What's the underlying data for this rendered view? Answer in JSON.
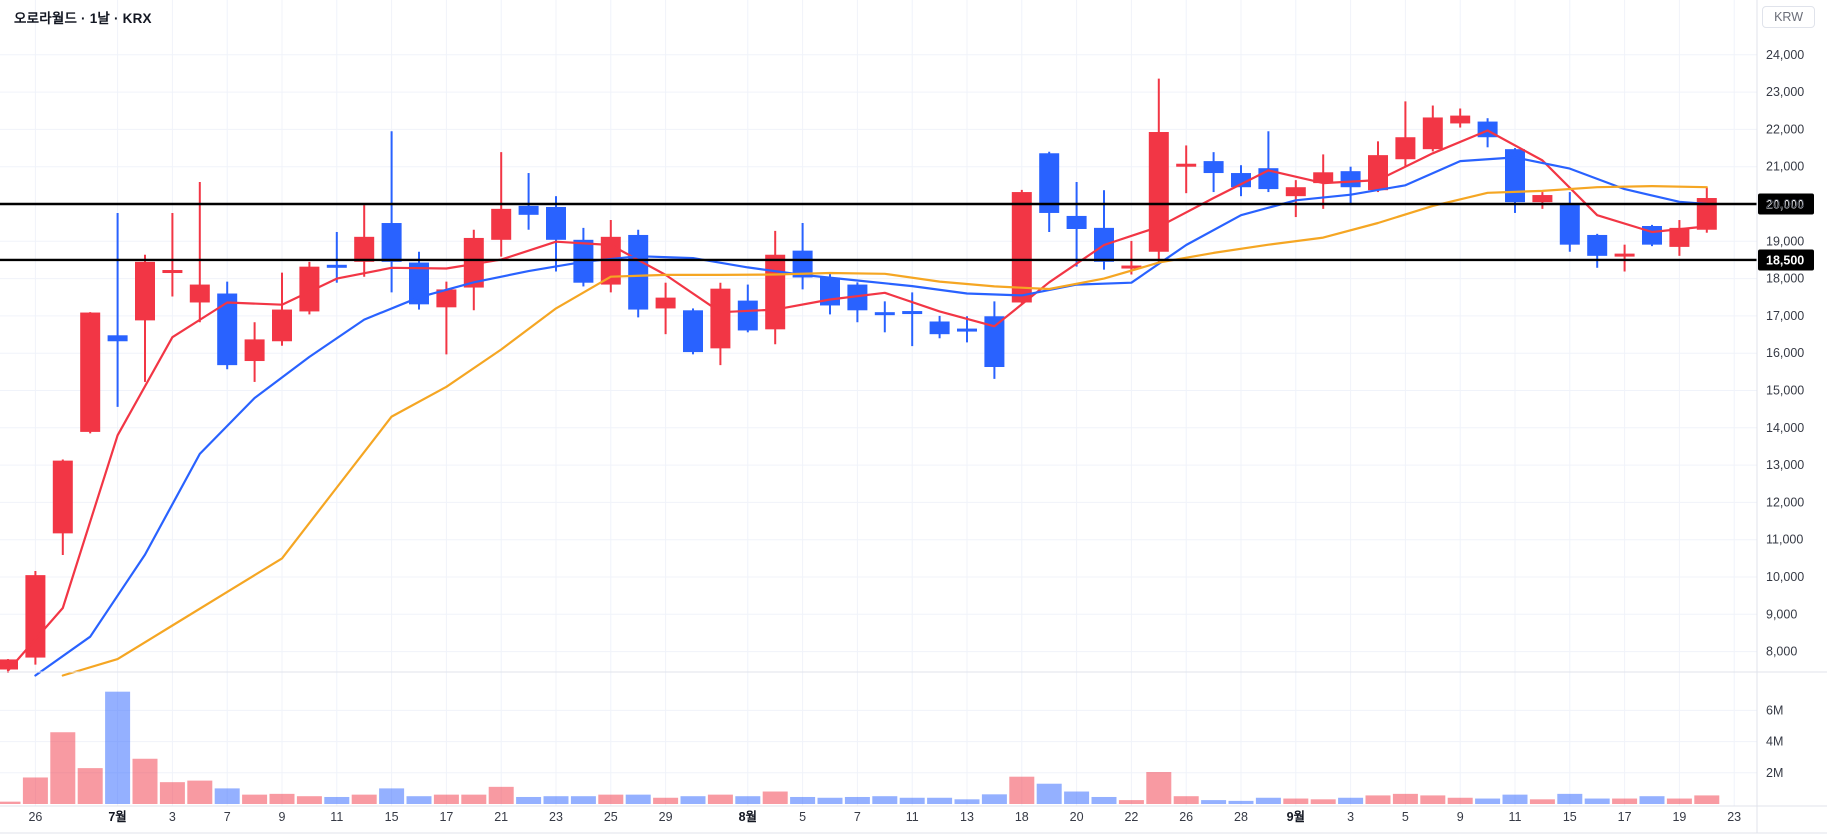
{
  "header": {
    "symbol_title": "오로라월드 · 1날 · KRX"
  },
  "price_axis": {
    "currency_label": "KRW",
    "ticks": [
      {
        "price": 8000,
        "label": "8,000"
      },
      {
        "price": 9000,
        "label": "9,000"
      },
      {
        "price": 10000,
        "label": "10,000"
      },
      {
        "price": 11000,
        "label": "11,000"
      },
      {
        "price": 12000,
        "label": "12,000"
      },
      {
        "price": 13000,
        "label": "13,000"
      },
      {
        "price": 14000,
        "label": "14,000"
      },
      {
        "price": 15000,
        "label": "15,000"
      },
      {
        "price": 16000,
        "label": "16,000"
      },
      {
        "price": 17000,
        "label": "17,000"
      },
      {
        "price": 18000,
        "label": "18,000"
      },
      {
        "price": 19000,
        "label": "19,000"
      },
      {
        "price": 20000,
        "label": "20,000"
      },
      {
        "price": 21000,
        "label": "21,000"
      },
      {
        "price": 22000,
        "label": "22,000"
      },
      {
        "price": 23000,
        "label": "23,000"
      },
      {
        "price": 24000,
        "label": "24,000"
      }
    ]
  },
  "volume_axis": {
    "ticks": [
      {
        "value": 2,
        "label": "2M"
      },
      {
        "value": 4,
        "label": "4M"
      },
      {
        "value": 6,
        "label": "6M"
      }
    ]
  },
  "time_axis": {
    "ticks": [
      {
        "index": 1,
        "label": "26",
        "bold": false
      },
      {
        "index": 4,
        "label": "7월",
        "bold": true
      },
      {
        "index": 6,
        "label": "3",
        "bold": false
      },
      {
        "index": 8,
        "label": "7",
        "bold": false
      },
      {
        "index": 10,
        "label": "9",
        "bold": false
      },
      {
        "index": 12,
        "label": "11",
        "bold": false
      },
      {
        "index": 14,
        "label": "15",
        "bold": false
      },
      {
        "index": 16,
        "label": "17",
        "bold": false
      },
      {
        "index": 18,
        "label": "21",
        "bold": false
      },
      {
        "index": 20,
        "label": "23",
        "bold": false
      },
      {
        "index": 22,
        "label": "25",
        "bold": false
      },
      {
        "index": 24,
        "label": "29",
        "bold": false
      },
      {
        "index": 27,
        "label": "8월",
        "bold": true
      },
      {
        "index": 29,
        "label": "5",
        "bold": false
      },
      {
        "index": 31,
        "label": "7",
        "bold": false
      },
      {
        "index": 33,
        "label": "11",
        "bold": false
      },
      {
        "index": 35,
        "label": "13",
        "bold": false
      },
      {
        "index": 37,
        "label": "18",
        "bold": false
      },
      {
        "index": 39,
        "label": "20",
        "bold": false
      },
      {
        "index": 41,
        "label": "22",
        "bold": false
      },
      {
        "index": 43,
        "label": "26",
        "bold": false
      },
      {
        "index": 45,
        "label": "28",
        "bold": false
      },
      {
        "index": 47,
        "label": "9월",
        "bold": true
      },
      {
        "index": 49,
        "label": "3",
        "bold": false
      },
      {
        "index": 51,
        "label": "5",
        "bold": false
      },
      {
        "index": 53,
        "label": "9",
        "bold": false
      },
      {
        "index": 55,
        "label": "11",
        "bold": false
      },
      {
        "index": 57,
        "label": "15",
        "bold": false
      },
      {
        "index": 59,
        "label": "17",
        "bold": false
      },
      {
        "index": 61,
        "label": "19",
        "bold": false
      },
      {
        "index": 63,
        "label": "23",
        "bold": false
      }
    ]
  },
  "drawings": {
    "horizontal_lines": [
      {
        "price": 20000,
        "label": "20,000"
      },
      {
        "price": 18500,
        "label": "18,500"
      }
    ]
  },
  "colors": {
    "up": "#f23645",
    "down": "#2962ff",
    "vol_up": "rgba(242,54,69,0.5)",
    "vol_down": "rgba(41,98,255,0.5)",
    "grid": "#f0f3fa",
    "separator": "#e0e3eb",
    "axis_text": "#363a45",
    "line_black": "#000000"
  },
  "chart_data": {
    "type": "candlestick+volume",
    "symbol": "오로라월드",
    "interval": "1날",
    "exchange": "KRX",
    "currency": "KRW",
    "ylim_visible": [
      7500,
      25400
    ],
    "price_tick_step": 1000,
    "volume_unit": "M",
    "volume_ylim": [
      0,
      8
    ],
    "grid": true,
    "candle_columns": [
      "date",
      "open",
      "high",
      "low",
      "close",
      "volume_M"
    ],
    "candles": [
      [
        "6/25",
        7520,
        7800,
        7430,
        7790,
        0.15
      ],
      [
        "6/26",
        7840,
        10160,
        7650,
        10050,
        1.7
      ],
      [
        "6/27",
        11170,
        13150,
        10590,
        13120,
        4.6
      ],
      [
        "6/30",
        13890,
        17100,
        13850,
        17090,
        2.3
      ],
      [
        "7/1",
        16480,
        19760,
        14560,
        16320,
        7.2
      ],
      [
        "7/2",
        16880,
        18640,
        15230,
        18450,
        2.9
      ],
      [
        "7/3",
        18150,
        19760,
        17520,
        18230,
        1.4
      ],
      [
        "7/4",
        17360,
        20590,
        16830,
        17840,
        1.5
      ],
      [
        "7/7",
        17600,
        17920,
        15570,
        15680,
        1.0
      ],
      [
        "7/8",
        15790,
        16830,
        15230,
        16370,
        0.6
      ],
      [
        "7/9",
        16320,
        18160,
        16200,
        17170,
        0.65
      ],
      [
        "7/10",
        17120,
        18450,
        17040,
        18320,
        0.5
      ],
      [
        "7/11",
        18370,
        19250,
        17890,
        18330,
        0.45
      ],
      [
        "7/14",
        18450,
        19970,
        18050,
        19120,
        0.6
      ],
      [
        "7/15",
        19490,
        21950,
        17630,
        18450,
        1.0
      ],
      [
        "7/16",
        18430,
        18720,
        17170,
        17310,
        0.5
      ],
      [
        "7/17",
        17230,
        17920,
        15970,
        17710,
        0.6
      ],
      [
        "7/18",
        17760,
        19310,
        17150,
        19090,
        0.6
      ],
      [
        "7/21",
        19040,
        21390,
        18590,
        19870,
        1.1
      ],
      [
        "7/22",
        19950,
        20830,
        19310,
        19710,
        0.45
      ],
      [
        "7/23",
        19920,
        20210,
        18190,
        19040,
        0.5
      ],
      [
        "7/24",
        19040,
        19360,
        17790,
        17890,
        0.5
      ],
      [
        "7/25",
        17840,
        19570,
        17630,
        19120,
        0.6
      ],
      [
        "7/28",
        19170,
        19310,
        16960,
        17170,
        0.6
      ],
      [
        "7/29",
        17200,
        17890,
        16510,
        17490,
        0.4
      ],
      [
        "7/30",
        17150,
        17200,
        15970,
        16030,
        0.5
      ],
      [
        "7/31",
        16130,
        17890,
        15680,
        17730,
        0.6
      ],
      [
        "8/1",
        17410,
        17840,
        16560,
        16610,
        0.5
      ],
      [
        "8/4",
        16640,
        19280,
        16240,
        18640,
        0.8
      ],
      [
        "8/5",
        18750,
        19490,
        17710,
        18030,
        0.45
      ],
      [
        "8/6",
        18030,
        18160,
        17040,
        17280,
        0.4
      ],
      [
        "8/7",
        17840,
        17900,
        16830,
        17150,
        0.45
      ],
      [
        "8/8",
        17100,
        17390,
        16560,
        17090,
        0.5
      ],
      [
        "8/11",
        17130,
        17630,
        16190,
        17110,
        0.4
      ],
      [
        "8/12",
        16850,
        17000,
        16400,
        16510,
        0.4
      ],
      [
        "8/13",
        16660,
        16990,
        16290,
        16630,
        0.3
      ],
      [
        "8/14",
        16990,
        17390,
        15310,
        15630,
        0.62
      ],
      [
        "8/18",
        17360,
        20380,
        17310,
        20320,
        1.75
      ],
      [
        "8/19",
        21360,
        21400,
        19250,
        19760,
        1.3
      ],
      [
        "8/20",
        19680,
        20590,
        18320,
        19330,
        0.8
      ],
      [
        "8/21",
        19360,
        20370,
        18240,
        18450,
        0.45
      ],
      [
        "8/22",
        18290,
        19010,
        18110,
        18350,
        0.25
      ],
      [
        "8/25",
        18720,
        23360,
        18450,
        21930,
        2.05
      ],
      [
        "8/26",
        21000,
        21570,
        20290,
        21080,
        0.5
      ],
      [
        "8/27",
        21150,
        21390,
        20320,
        20830,
        0.25
      ],
      [
        "8/28",
        20830,
        21040,
        20210,
        20450,
        0.2
      ],
      [
        "8/29",
        20960,
        21950,
        20320,
        20400,
        0.4
      ],
      [
        "9/1",
        20210,
        20640,
        19650,
        20450,
        0.35
      ],
      [
        "9/2",
        20560,
        21330,
        19870,
        20850,
        0.3
      ],
      [
        "9/3",
        20880,
        21000,
        19970,
        20450,
        0.4
      ],
      [
        "9/4",
        20370,
        21680,
        20320,
        21310,
        0.55
      ],
      [
        "9/5",
        21200,
        22750,
        20990,
        21790,
        0.65
      ],
      [
        "9/8",
        21470,
        22640,
        21410,
        22320,
        0.55
      ],
      [
        "9/9",
        22160,
        22560,
        22050,
        22370,
        0.4
      ],
      [
        "9/10",
        22210,
        22300,
        21520,
        21790,
        0.35
      ],
      [
        "9/11",
        21470,
        21500,
        19760,
        20050,
        0.6
      ],
      [
        "9/12",
        20050,
        20320,
        19870,
        20240,
        0.3
      ],
      [
        "9/15",
        20000,
        20320,
        18720,
        18910,
        0.65
      ],
      [
        "9/16",
        19170,
        19200,
        18290,
        18610,
        0.35
      ],
      [
        "9/17",
        18620,
        18910,
        18190,
        18670,
        0.35
      ],
      [
        "9/18",
        19410,
        19440,
        18870,
        18910,
        0.5
      ],
      [
        "9/19",
        18850,
        19570,
        18610,
        19360,
        0.35
      ],
      [
        "9/22",
        19310,
        20430,
        19230,
        20160,
        0.55
      ]
    ],
    "moving_averages": [
      {
        "name": "ma-fast-red",
        "color": "#f23645",
        "points": [
          [
            0,
            7490
          ],
          [
            2,
            9170
          ],
          [
            4,
            13800
          ],
          [
            6,
            16430
          ],
          [
            8,
            17360
          ],
          [
            10,
            17300
          ],
          [
            12,
            18000
          ],
          [
            14,
            18290
          ],
          [
            16,
            18270
          ],
          [
            18,
            18510
          ],
          [
            20,
            18990
          ],
          [
            22,
            18900
          ],
          [
            24,
            18100
          ],
          [
            26,
            17100
          ],
          [
            28,
            17170
          ],
          [
            30,
            17440
          ],
          [
            32,
            17620
          ],
          [
            34,
            17120
          ],
          [
            36,
            16720
          ],
          [
            38,
            17900
          ],
          [
            40,
            18900
          ],
          [
            42,
            19390
          ],
          [
            44,
            20160
          ],
          [
            46,
            20900
          ],
          [
            48,
            20560
          ],
          [
            50,
            20640
          ],
          [
            52,
            21360
          ],
          [
            54,
            21970
          ],
          [
            56,
            21170
          ],
          [
            58,
            19700
          ],
          [
            60,
            19250
          ],
          [
            62,
            19400
          ]
        ]
      },
      {
        "name": "ma-mid-blue",
        "color": "#2962ff",
        "points": [
          [
            1,
            7360
          ],
          [
            3,
            8400
          ],
          [
            5,
            10600
          ],
          [
            7,
            13300
          ],
          [
            9,
            14800
          ],
          [
            11,
            15900
          ],
          [
            13,
            16900
          ],
          [
            15,
            17500
          ],
          [
            17,
            17900
          ],
          [
            19,
            18200
          ],
          [
            21,
            18450
          ],
          [
            23,
            18600
          ],
          [
            25,
            18550
          ],
          [
            27,
            18300
          ],
          [
            29,
            18100
          ],
          [
            31,
            17950
          ],
          [
            33,
            17800
          ],
          [
            35,
            17600
          ],
          [
            37,
            17550
          ],
          [
            39,
            17840
          ],
          [
            41,
            17890
          ],
          [
            43,
            18900
          ],
          [
            45,
            19700
          ],
          [
            47,
            20100
          ],
          [
            49,
            20250
          ],
          [
            51,
            20500
          ],
          [
            53,
            21150
          ],
          [
            55,
            21250
          ],
          [
            57,
            20950
          ],
          [
            59,
            20400
          ],
          [
            61,
            20060
          ],
          [
            62,
            20000
          ]
        ]
      },
      {
        "name": "ma-slow-yellow",
        "color": "#f5a623",
        "points": [
          [
            2,
            7360
          ],
          [
            4,
            7800
          ],
          [
            6,
            8700
          ],
          [
            8,
            9600
          ],
          [
            10,
            10500
          ],
          [
            12,
            12400
          ],
          [
            14,
            14300
          ],
          [
            16,
            15100
          ],
          [
            18,
            16100
          ],
          [
            20,
            17200
          ],
          [
            22,
            18050
          ],
          [
            24,
            18100
          ],
          [
            26,
            18100
          ],
          [
            28,
            18110
          ],
          [
            30,
            18150
          ],
          [
            32,
            18130
          ],
          [
            34,
            17920
          ],
          [
            36,
            17790
          ],
          [
            38,
            17720
          ],
          [
            40,
            18000
          ],
          [
            42,
            18430
          ],
          [
            44,
            18690
          ],
          [
            46,
            18910
          ],
          [
            48,
            19100
          ],
          [
            50,
            19490
          ],
          [
            52,
            19950
          ],
          [
            54,
            20300
          ],
          [
            56,
            20350
          ],
          [
            58,
            20450
          ],
          [
            60,
            20480
          ],
          [
            62,
            20450
          ]
        ]
      }
    ]
  }
}
